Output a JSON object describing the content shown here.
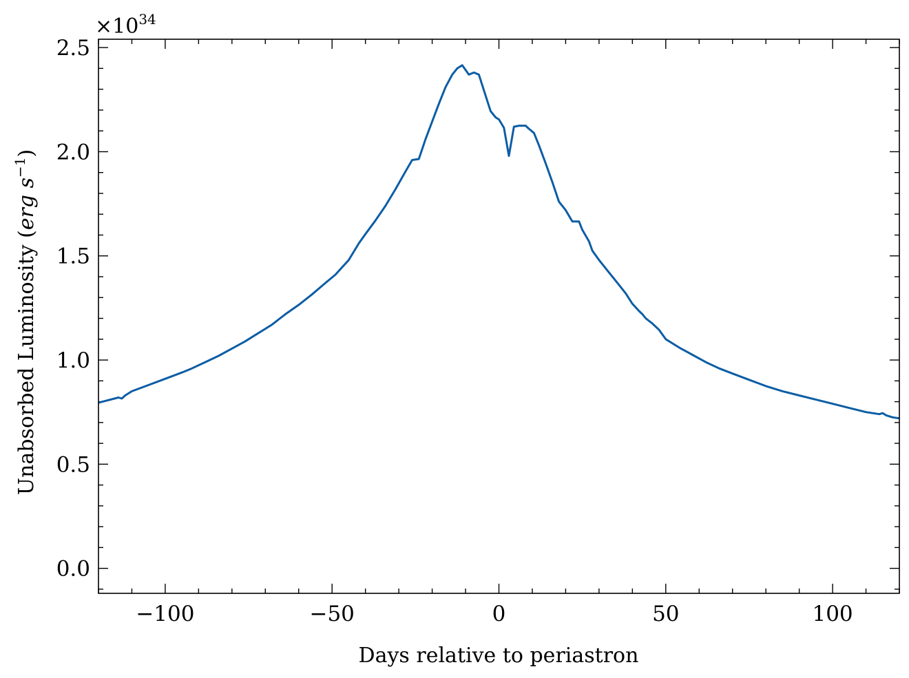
{
  "chart_data": {
    "type": "line",
    "xlabel": "Days relative to periastron",
    "ylabel_main": "Unabsorbed Luminosity (",
    "ylabel_italic": "erg s",
    "ylabel_sup": "−1",
    "ylabel_close": ")",
    "y_multiplier_base": "×10",
    "y_multiplier_exp": "34",
    "xlim": [
      -120,
      120
    ],
    "ylim": [
      -0.12,
      2.54
    ],
    "x_ticks": [
      -100,
      -50,
      0,
      50,
      100
    ],
    "x_tick_labels": [
      "−100",
      "−50",
      "0",
      "50",
      "100"
    ],
    "y_ticks": [
      0.0,
      0.5,
      1.0,
      1.5,
      2.0,
      2.5
    ],
    "y_tick_labels": [
      "0.0",
      "0.5",
      "1.0",
      "1.5",
      "2.0",
      "2.5"
    ],
    "line_color": "#0c5da5",
    "series": [
      {
        "x": [
          -120,
          -114,
          -113,
          -112,
          -110,
          -105,
          -100,
          -95,
          -92,
          -88,
          -84,
          -80,
          -76,
          -72,
          -68,
          -64,
          -60,
          -56,
          -52,
          -49,
          -47,
          -45,
          -42,
          -40,
          -37,
          -34,
          -31,
          -28,
          -26,
          -24,
          -22,
          -20,
          -18,
          -16,
          -14,
          -12.5,
          -11,
          -9,
          -7.5,
          -6,
          -4,
          -2.5,
          -1,
          0,
          1.5,
          3,
          4.5,
          6,
          8,
          9,
          10.5,
          12,
          14,
          16,
          18,
          20,
          22,
          24,
          25,
          27,
          28,
          30,
          32,
          34,
          36,
          38,
          40,
          42,
          43,
          44,
          46,
          48,
          50,
          54,
          58,
          62,
          66,
          70,
          75,
          80,
          85,
          90,
          95,
          100,
          105,
          110,
          114,
          115,
          116,
          118,
          120
        ],
        "y": [
          0.795,
          0.82,
          0.815,
          0.83,
          0.85,
          0.88,
          0.91,
          0.94,
          0.96,
          0.99,
          1.02,
          1.055,
          1.09,
          1.13,
          1.17,
          1.22,
          1.265,
          1.315,
          1.37,
          1.41,
          1.445,
          1.48,
          1.56,
          1.605,
          1.67,
          1.74,
          1.82,
          1.905,
          1.96,
          1.965,
          2.06,
          2.145,
          2.23,
          2.31,
          2.37,
          2.4,
          2.415,
          2.37,
          2.38,
          2.37,
          2.27,
          2.195,
          2.165,
          2.155,
          2.115,
          1.98,
          2.12,
          2.125,
          2.125,
          2.11,
          2.09,
          2.03,
          1.945,
          1.855,
          1.76,
          1.72,
          1.665,
          1.665,
          1.625,
          1.57,
          1.525,
          1.48,
          1.44,
          1.4,
          1.36,
          1.32,
          1.27,
          1.235,
          1.22,
          1.2,
          1.175,
          1.145,
          1.1,
          1.06,
          1.025,
          0.99,
          0.96,
          0.935,
          0.905,
          0.875,
          0.85,
          0.83,
          0.81,
          0.79,
          0.77,
          0.75,
          0.74,
          0.745,
          0.735,
          0.725,
          0.72
        ]
      }
    ]
  }
}
